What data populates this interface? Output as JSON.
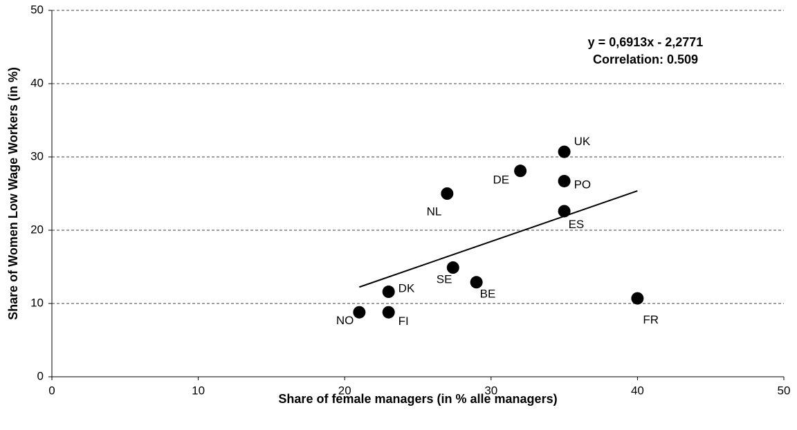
{
  "chart_data": {
    "type": "scatter",
    "x_label": "Share of female managers (in % alle managers)",
    "y_label": "Share of Women Low Wage Workers (in %)",
    "annotations": [
      "y = 0,6913x - 2,2771",
      "Correlation: 0.509"
    ],
    "point_labels": [
      "NO",
      "FI",
      "DK",
      "SE",
      "NL",
      "BE",
      "DE",
      "UK",
      "PO",
      "ES",
      "FR"
    ],
    "x": [
      21,
      23,
      23,
      27.4,
      27,
      29,
      32,
      35,
      35,
      35,
      40
    ],
    "values": [
      8.8,
      8.8,
      11.6,
      14.9,
      25.0,
      12.9,
      28.1,
      30.7,
      26.7,
      22.6,
      10.7
    ],
    "color": "#000000",
    "trendline": {
      "x": [
        21,
        40
      ],
      "values": [
        12.24,
        25.37
      ],
      "color": "#000000"
    },
    "xlim": [
      0,
      50
    ],
    "xticks": [
      0,
      10,
      20,
      30,
      40,
      50
    ],
    "ylim": [
      0,
      50
    ],
    "yticks": [
      0,
      10,
      20,
      30,
      40,
      50
    ],
    "grid": true
  }
}
